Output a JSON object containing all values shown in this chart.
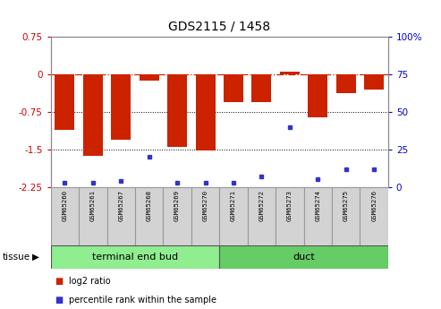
{
  "title": "GDS2115 / 1458",
  "samples": [
    "GSM65260",
    "GSM65261",
    "GSM65267",
    "GSM65268",
    "GSM65269",
    "GSM65270",
    "GSM65271",
    "GSM65272",
    "GSM65273",
    "GSM65274",
    "GSM65275",
    "GSM65276"
  ],
  "log2_ratio": [
    -1.1,
    -1.62,
    -1.3,
    -0.12,
    -1.45,
    -1.52,
    -0.55,
    -0.55,
    0.05,
    -0.85,
    -0.38,
    -0.3
  ],
  "percentile_rank": [
    3,
    3,
    4,
    20,
    3,
    3,
    3,
    7,
    40,
    5,
    12,
    12
  ],
  "groups": [
    {
      "label": "terminal end bud",
      "start": 0,
      "end": 6,
      "color": "#90EE90"
    },
    {
      "label": "duct",
      "start": 6,
      "end": 12,
      "color": "#66CC66"
    }
  ],
  "ylim": [
    -2.25,
    0.75
  ],
  "yticks_left": [
    0.75,
    0.0,
    -0.75,
    -1.5,
    -2.25
  ],
  "yticks_right_vals": [
    100,
    75,
    50,
    25,
    0
  ],
  "bar_color": "#CC2200",
  "dot_color": "#3333CC",
  "dotted_lines": [
    -0.75,
    -1.5
  ],
  "bar_width": 0.7,
  "legend_items": [
    {
      "label": "log2 ratio",
      "color": "#CC2200"
    },
    {
      "label": "percentile rank within the sample",
      "color": "#3333CC"
    }
  ]
}
